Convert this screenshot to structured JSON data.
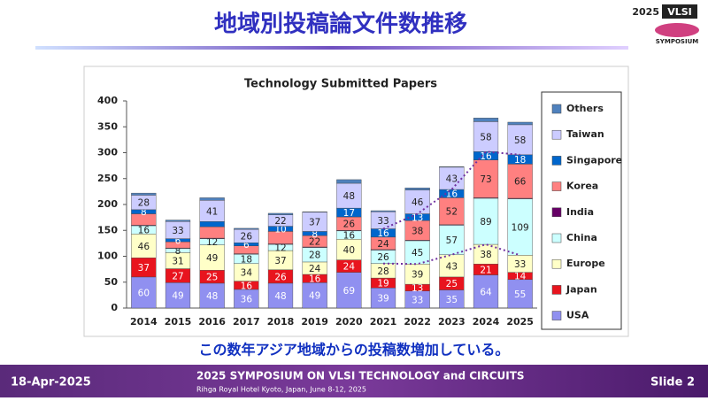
{
  "slide": {
    "title": "地域別投稿論文件数推移",
    "logo_year": "2025",
    "logo_name": "VLSI",
    "logo_sub": "SYMPOSIUM",
    "comment": "この数年アジア地域からの投稿数増加している。",
    "date": "18-Apr-2025",
    "footer_title": "2025 SYMPOSIUM ON VLSI TECHNOLOGY and CIRCUITS",
    "footer_sub": "Rihga Royal Hotel Kyoto, Japan, June 8-12, 2025",
    "slide_no": "Slide 2"
  },
  "chart_data": {
    "type": "stacked-bar",
    "title": "Technology Submitted Papers",
    "categories": [
      "2014",
      "2015",
      "2016",
      "2017",
      "2018",
      "2019",
      "2020",
      "2021",
      "2022",
      "2023",
      "2024",
      "2025"
    ],
    "ylim": [
      0,
      400
    ],
    "yticks": [
      0,
      50,
      100,
      150,
      200,
      250,
      300,
      350,
      400
    ],
    "grid": false,
    "legend": "right",
    "series": [
      {
        "name": "USA",
        "color": "#9090f0",
        "values": [
          60,
          49,
          48,
          36,
          48,
          49,
          69,
          39,
          33,
          35,
          64,
          55
        ],
        "value_labels": [
          "60",
          "49",
          "48",
          "36",
          "48",
          "49",
          "69",
          "39",
          "33",
          "35",
          "64",
          "55"
        ]
      },
      {
        "name": "Japan",
        "color": "#e8141e",
        "values": [
          37,
          27,
          25,
          16,
          26,
          16,
          24,
          19,
          13,
          25,
          21,
          14
        ],
        "value_labels": [
          "37",
          "27",
          "25",
          "16",
          "26",
          "16",
          "24",
          "19",
          "13",
          "25",
          "21",
          "14"
        ]
      },
      {
        "name": "Europe",
        "color": "#ffffc8",
        "values": [
          46,
          31,
          49,
          34,
          37,
          24,
          40,
          28,
          39,
          43,
          38,
          33
        ],
        "value_labels": [
          "46",
          "31",
          "49",
          "34",
          "37",
          "24",
          "40",
          "28",
          "39",
          "43",
          "38",
          "33"
        ]
      },
      {
        "name": "China",
        "color": "#ccffff",
        "values": [
          16,
          8,
          12,
          18,
          12,
          28,
          16,
          26,
          45,
          57,
          89,
          109
        ],
        "value_labels": [
          "16",
          "8",
          "12",
          "18",
          "12",
          "28",
          "16",
          "26",
          "45",
          "57",
          "89",
          "109"
        ]
      },
      {
        "name": "India",
        "color": "#660066",
        "values": [
          1,
          1,
          1,
          1,
          1,
          1,
          1,
          1,
          1,
          1,
          1,
          1
        ]
      },
      {
        "name": "Korea",
        "color": "#ff8080",
        "values": [
          22,
          12,
          22,
          15,
          24,
          22,
          26,
          24,
          38,
          52,
          73,
          66
        ],
        "value_labels": [
          null,
          null,
          null,
          null,
          null,
          "22",
          "26",
          "24",
          "38",
          "52",
          "73",
          "66"
        ]
      },
      {
        "name": "Singapore",
        "color": "#0066cc",
        "values": [
          8,
          6,
          10,
          6,
          10,
          8,
          17,
          16,
          13,
          16,
          16,
          18
        ],
        "value_labels": [
          "8",
          "6",
          null,
          "6",
          "10",
          "8",
          "17",
          "16",
          "13",
          "16",
          "16",
          "18"
        ]
      },
      {
        "name": "Taiwan",
        "color": "#ccccff",
        "values": [
          28,
          33,
          41,
          26,
          22,
          37,
          48,
          33,
          46,
          43,
          58,
          58
        ],
        "value_labels": [
          "28",
          "33",
          "41",
          "26",
          "22",
          "37",
          "48",
          "33",
          "46",
          "43",
          "58",
          "58"
        ]
      },
      {
        "name": "Others",
        "color": "#4f81bd",
        "values": [
          4,
          3,
          5,
          2,
          3,
          1,
          7,
          2,
          4,
          1,
          7,
          5
        ]
      }
    ]
  }
}
